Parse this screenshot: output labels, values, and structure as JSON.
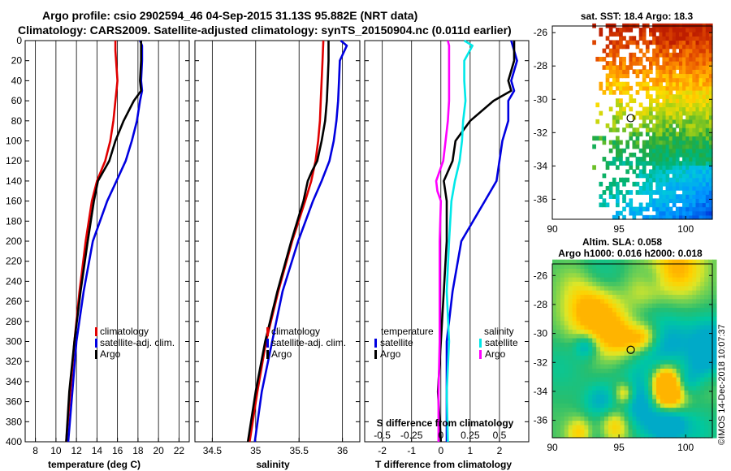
{
  "header": {
    "line1": "Argo profile: csio 2902594_46 04-Sep-2015 31.13S 95.882E (NRT data)",
    "line2": "Climatology: CARS2009. Satellite-adjusted climatology: synTS_20150904.nc (0.011d earlier)"
  },
  "colors": {
    "climatology": "#e00000",
    "satellite": "#0000e0",
    "argo": "#000000",
    "salinity_climatology": "#ff00ff",
    "salinity_satellite": "#00e8e8"
  },
  "chart_data": [
    {
      "type": "line",
      "id": "temperature",
      "xlabel": "temperature (deg C)",
      "ylabel": "",
      "xlim": [
        7,
        23
      ],
      "ylim": [
        400,
        0
      ],
      "xticks": [
        8,
        10,
        12,
        14,
        16,
        18,
        20,
        22
      ],
      "yticks": [
        0,
        20,
        40,
        60,
        80,
        100,
        120,
        140,
        160,
        180,
        200,
        220,
        240,
        260,
        280,
        300,
        320,
        340,
        360,
        380,
        400
      ],
      "legend": [
        "climatology",
        "satellite-adj. clim.",
        "Argo"
      ],
      "series": [
        {
          "name": "climatology",
          "color": "climatology",
          "depth": [
            0,
            10,
            40,
            50,
            60,
            80,
            100,
            120,
            140,
            160,
            200,
            250,
            300,
            350,
            400
          ],
          "values": [
            15.8,
            15.8,
            16.0,
            15.9,
            15.8,
            15.6,
            15.3,
            14.8,
            14.0,
            13.5,
            12.9,
            12.3,
            11.8,
            11.4,
            11.0
          ]
        },
        {
          "name": "satellite-adj. clim.",
          "color": "satellite",
          "depth": [
            0,
            5,
            20,
            40,
            50,
            60,
            80,
            100,
            120,
            140,
            160,
            200,
            250,
            300,
            350,
            400
          ],
          "values": [
            18.2,
            18.4,
            18.4,
            18.3,
            18.4,
            18.2,
            17.9,
            17.4,
            16.8,
            15.9,
            15.0,
            13.6,
            12.7,
            12.0,
            11.6,
            11.2
          ]
        },
        {
          "name": "Argo",
          "color": "argo",
          "depth": [
            0,
            5,
            20,
            40,
            50,
            60,
            80,
            100,
            120,
            140,
            160,
            200,
            250,
            300,
            350,
            400
          ],
          "values": [
            18.3,
            18.3,
            18.3,
            18.2,
            18.3,
            17.6,
            16.6,
            15.8,
            15.2,
            14.1,
            13.7,
            13.1,
            12.4,
            11.8,
            11.3,
            11.0
          ]
        }
      ]
    },
    {
      "type": "line",
      "id": "salinity",
      "xlabel": "salinity",
      "ylabel": "",
      "xlim": [
        34.3,
        36.2
      ],
      "ylim": [
        400,
        0
      ],
      "xticks": [
        34.5,
        35,
        35.5,
        36
      ],
      "xtick_labels": [
        "34.5",
        "35",
        "35.5",
        "36"
      ],
      "legend": [
        "climatology",
        "satellite-adj. clim.",
        "Argo"
      ],
      "series": [
        {
          "name": "climatology",
          "color": "climatology",
          "depth": [
            0,
            20,
            40,
            60,
            80,
            100,
            120,
            140,
            160,
            200,
            250,
            300,
            350,
            400
          ],
          "values": [
            35.78,
            35.77,
            35.76,
            35.75,
            35.74,
            35.72,
            35.69,
            35.64,
            35.57,
            35.42,
            35.26,
            35.12,
            35.02,
            34.93
          ]
        },
        {
          "name": "satellite-adj. clim.",
          "color": "satellite",
          "depth": [
            0,
            5,
            20,
            40,
            60,
            80,
            100,
            120,
            140,
            160,
            200,
            250,
            300,
            350,
            400
          ],
          "values": [
            35.98,
            36.05,
            35.97,
            35.96,
            35.95,
            35.93,
            35.9,
            35.85,
            35.76,
            35.66,
            35.49,
            35.31,
            35.19,
            35.07,
            34.99
          ]
        },
        {
          "name": "Argo",
          "color": "argo",
          "depth": [
            0,
            5,
            20,
            40,
            60,
            80,
            100,
            120,
            130,
            140,
            160,
            200,
            250,
            300,
            350,
            400
          ],
          "values": [
            35.84,
            35.84,
            35.84,
            35.83,
            35.82,
            35.8,
            35.76,
            35.71,
            35.65,
            35.6,
            35.55,
            35.41,
            35.25,
            35.11,
            35.0,
            34.91
          ]
        }
      ]
    },
    {
      "type": "line",
      "id": "difference",
      "xlabel": "T difference from climatology",
      "xlabel_top": "S difference from climatology",
      "ylabel": "",
      "xlim": [
        -2.6,
        3.0
      ],
      "ylim": [
        400,
        0
      ],
      "xticks": [
        -2,
        -1,
        0,
        1,
        2
      ],
      "xtick_labels": [
        "-2",
        "-1",
        "0",
        "1",
        "2"
      ],
      "s_xlim": [
        -0.65,
        0.75
      ],
      "s_xticks": [
        -0.5,
        -0.25,
        0,
        0.25,
        0.5
      ],
      "s_xtick_labels": [
        "-0.5",
        "-0.25",
        "0",
        "0.25",
        "0.5"
      ],
      "legend_temperature_title": "temperature",
      "legend_salinity_title": "salinity",
      "legend_items": [
        "satellite",
        "Argo"
      ],
      "series": [
        {
          "name": "temperature satellite",
          "color": "satellite",
          "depth": [
            0,
            20,
            40,
            50,
            60,
            80,
            100,
            120,
            140,
            160,
            200,
            250,
            300,
            350,
            400
          ],
          "values": [
            2.4,
            2.6,
            2.4,
            2.5,
            2.3,
            2.3,
            2.1,
            2.0,
            1.9,
            1.5,
            0.7,
            0.4,
            0.2,
            0.2,
            0.2
          ]
        },
        {
          "name": "temperature Argo",
          "color": "argo",
          "depth": [
            0,
            20,
            40,
            50,
            60,
            80,
            100,
            120,
            140,
            160,
            200,
            250,
            300,
            350,
            400
          ],
          "values": [
            2.5,
            2.5,
            2.3,
            2.4,
            1.8,
            1.0,
            0.5,
            0.4,
            0.1,
            0.2,
            0.2,
            0.1,
            0.0,
            -0.1,
            0.0
          ]
        },
        {
          "name": "salinity satellite",
          "color": "salinity_satellite",
          "depth": [
            0,
            5,
            20,
            40,
            60,
            80,
            100,
            120,
            140,
            160,
            200,
            250,
            300,
            350,
            400
          ],
          "values": [
            0.2,
            0.27,
            0.2,
            0.2,
            0.21,
            0.19,
            0.18,
            0.16,
            0.12,
            0.09,
            0.07,
            0.05,
            0.07,
            0.05,
            0.06
          ]
        },
        {
          "name": "salinity Argo",
          "color": "salinity_climatology",
          "depth": [
            0,
            5,
            20,
            40,
            60,
            80,
            100,
            120,
            130,
            140,
            150,
            160,
            200,
            250,
            300,
            350,
            400
          ],
          "values": [
            0.06,
            0.07,
            0.07,
            0.07,
            0.07,
            0.06,
            0.04,
            0.02,
            -0.01,
            -0.04,
            -0.03,
            0.0,
            -0.01,
            -0.01,
            -0.01,
            -0.02,
            -0.02
          ]
        }
      ]
    },
    {
      "type": "heatmap",
      "id": "sst_map",
      "title": "sat. SST: 18.4 Argo: 18.3",
      "xlim": [
        90,
        102
      ],
      "ylim": [
        -37.2,
        -25.6
      ],
      "xticks": [
        90,
        95,
        100
      ],
      "xtick_labels": [
        "90",
        "95",
        "100"
      ],
      "yticks": [
        -26,
        -28,
        -30,
        -32,
        -34,
        -36
      ],
      "ytick_labels": [
        "-26",
        "-28",
        "-30",
        "-32",
        "-34",
        "-36"
      ],
      "marker": {
        "lon": 95.882,
        "lat": -31.13
      }
    },
    {
      "type": "heatmap",
      "id": "sla_map",
      "title_line1": "Altim. SLA: 0.058",
      "title_line2": "Argo h1000: 0.016 h2000: 0.018",
      "xlim": [
        90,
        102
      ],
      "ylim": [
        -37.2,
        -25.2
      ],
      "xticks": [
        90,
        95,
        100
      ],
      "xtick_labels": [
        "90",
        "95",
        "100"
      ],
      "yticks": [
        -26,
        -28,
        -30,
        -32,
        -34,
        -36
      ],
      "ytick_labels": [
        "-26",
        "-28",
        "-30",
        "-32",
        "-34",
        "-36"
      ],
      "marker": {
        "lon": 95.882,
        "lat": -31.13
      }
    }
  ],
  "footer": {
    "stamp": "©IMOS 14-Dec-2018 10:07:37"
  }
}
